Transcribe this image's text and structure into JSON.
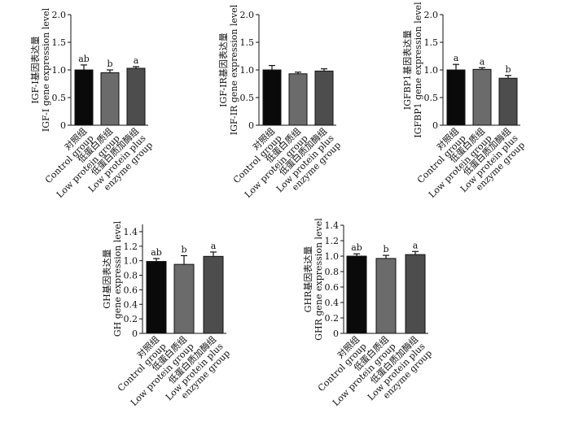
{
  "chart_data": [
    {
      "type": "bar",
      "ylabel_lines": [
        "IGF-Ⅰ基因表达量",
        "IGF-Ⅰ gene expression level"
      ],
      "categories": [
        [
          "对照组",
          "Control group"
        ],
        [
          "低蛋白质组",
          "Low protein group"
        ],
        [
          "低蛋白质加酶组",
          "Low protein plus",
          "enzyme group"
        ]
      ],
      "values": [
        1.0,
        0.95,
        1.03
      ],
      "errors": [
        0.09,
        0.05,
        0.03
      ],
      "significance": [
        "ab",
        "b",
        "a"
      ],
      "ylim": [
        0,
        2.0
      ],
      "yticks": [
        "0",
        "0.5",
        "1.0",
        "1.5",
        "2.0"
      ],
      "bar_colors": [
        "#0a0a0a",
        "#6b6b6b",
        "#4d4d4d"
      ]
    },
    {
      "type": "bar",
      "ylabel_lines": [
        "IGF-ⅠR基因表达量",
        "IGF-ⅠR gene expression level"
      ],
      "categories": [
        [
          "对照组",
          "Control group"
        ],
        [
          "低蛋白质组",
          "Low protein group"
        ],
        [
          "低蛋白质加酶组",
          "Low protein plus",
          "enzyme group"
        ]
      ],
      "values": [
        1.0,
        0.93,
        0.98
      ],
      "errors": [
        0.08,
        0.03,
        0.04
      ],
      "significance": [
        "",
        "",
        ""
      ],
      "ylim": [
        0,
        2.0
      ],
      "yticks": [
        "0",
        "0.5",
        "1.0",
        "1.5",
        "2.0"
      ],
      "bar_colors": [
        "#0a0a0a",
        "#6b6b6b",
        "#4d4d4d"
      ]
    },
    {
      "type": "bar",
      "ylabel_lines": [
        "IGFBP1基因表达量",
        "IGFBP1 gene expression level"
      ],
      "categories": [
        [
          "对照组",
          "Control group"
        ],
        [
          "低蛋白质组",
          "Low protein group"
        ],
        [
          "低蛋白质加酶组",
          "Low protein plus",
          "enzyme group"
        ]
      ],
      "values": [
        1.0,
        1.01,
        0.85
      ],
      "errors": [
        0.1,
        0.03,
        0.05
      ],
      "significance": [
        "a",
        "a",
        "b"
      ],
      "ylim": [
        0,
        2.0
      ],
      "yticks": [
        "0",
        "0.5",
        "1.0",
        "1.5",
        "2.0"
      ],
      "bar_colors": [
        "#0a0a0a",
        "#6b6b6b",
        "#4d4d4d"
      ]
    },
    {
      "type": "bar",
      "ylabel_lines": [
        "GH基因表达量",
        "GH gene expression level"
      ],
      "categories": [
        [
          "对照组",
          "Control group"
        ],
        [
          "低蛋白质组",
          "Low protein group"
        ],
        [
          "低蛋白质加酶组",
          "Low protein plus",
          "enzyme group"
        ]
      ],
      "values": [
        0.99,
        0.95,
        1.06
      ],
      "errors": [
        0.04,
        0.12,
        0.06
      ],
      "significance": [
        "ab",
        "b",
        "a"
      ],
      "ylim": [
        0,
        1.5
      ],
      "yticks": [
        "0",
        "0.2",
        "0.4",
        "0.6",
        "0.8",
        "1.0",
        "1.2",
        "1.4"
      ],
      "bar_colors": [
        "#0a0a0a",
        "#6b6b6b",
        "#4d4d4d"
      ]
    },
    {
      "type": "bar",
      "ylabel_lines": [
        "GHR基因表达量",
        "GHR gene expression level"
      ],
      "categories": [
        [
          "对照组",
          "Control group"
        ],
        [
          "低蛋白质组",
          "Low protein group"
        ],
        [
          "低蛋白质加酶组",
          "Low protein plus",
          "enzyme group"
        ]
      ],
      "values": [
        1.0,
        0.97,
        1.02
      ],
      "errors": [
        0.03,
        0.04,
        0.04
      ],
      "significance": [
        "ab",
        "b",
        "a"
      ],
      "ylim": [
        0,
        1.4
      ],
      "yticks": [
        "0",
        "0.2",
        "0.4",
        "0.6",
        "0.8",
        "1.0",
        "1.2",
        "1.4"
      ],
      "bar_colors": [
        "#0a0a0a",
        "#6b6b6b",
        "#4d4d4d"
      ]
    }
  ]
}
